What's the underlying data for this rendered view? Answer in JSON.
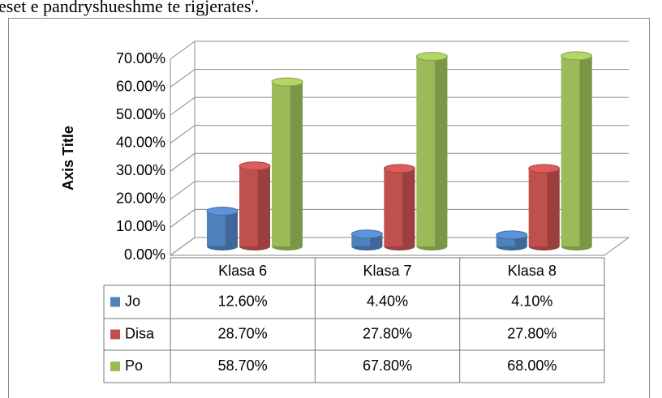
{
  "header": {
    "text": "eset e pandryshueshme te rigjerates'."
  },
  "chart_data": {
    "type": "bar3d",
    "y_axis_label": "Axis Title",
    "categories": [
      "Klasa 6",
      "Klasa 7",
      "Klasa 8"
    ],
    "series": [
      {
        "name": "Jo",
        "color": "#4f81bd",
        "values": [
          12.6,
          4.4,
          4.1
        ],
        "value_labels": [
          "12.60%",
          "4.40%",
          "4.10%"
        ]
      },
      {
        "name": "Disa",
        "color": "#c0504d",
        "values": [
          28.7,
          27.8,
          27.8
        ],
        "value_labels": [
          "28.70%",
          "27.80%",
          "27.80%"
        ]
      },
      {
        "name": "Po",
        "color": "#9bbb59",
        "values": [
          58.7,
          67.8,
          68.0
        ],
        "value_labels": [
          "58.70%",
          "67.80%",
          "68.00%"
        ]
      }
    ],
    "ylim": [
      0,
      70
    ],
    "yticks": [
      {
        "value": 0,
        "label": "0.00%"
      },
      {
        "value": 10,
        "label": "10.00%"
      },
      {
        "value": 20,
        "label": "20.00%"
      },
      {
        "value": 30,
        "label": "30.00%"
      },
      {
        "value": 40,
        "label": "40.00%"
      },
      {
        "value": 50,
        "label": "50.00%"
      },
      {
        "value": 60,
        "label": "60.00%"
      },
      {
        "value": 70,
        "label": "70.00%"
      }
    ],
    "grid": true
  }
}
